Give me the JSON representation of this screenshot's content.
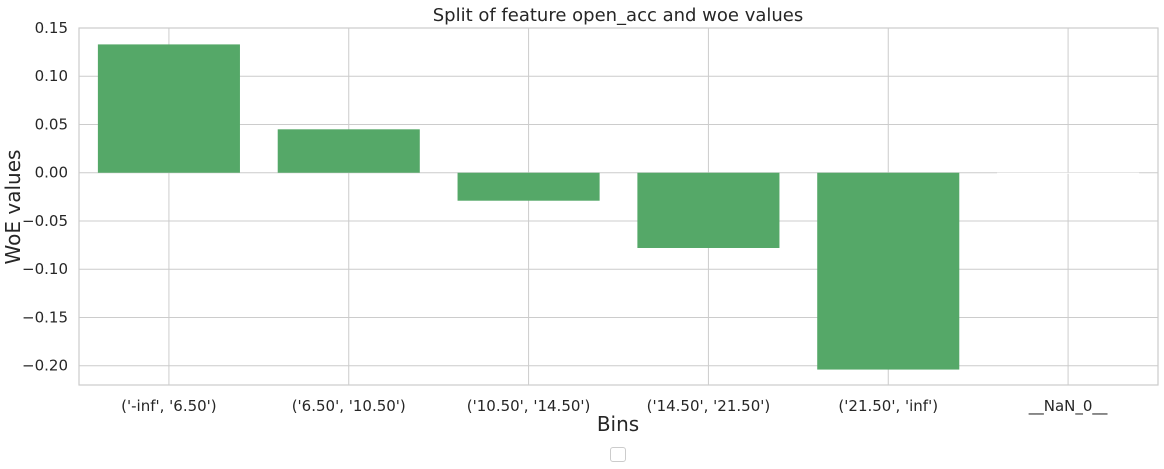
{
  "chart_data": {
    "type": "bar",
    "title": "Split of feature open_acc and woe values",
    "xlabel": "Bins",
    "ylabel": "WoE values",
    "categories": [
      "('-inf', '6.50')",
      "('6.50', '10.50')",
      "('10.50', '14.50')",
      "('14.50', '21.50')",
      "('21.50', 'inf')",
      "__NaN_0__"
    ],
    "values": [
      0.133,
      0.045,
      -0.029,
      -0.078,
      -0.204,
      0.0
    ],
    "ylim": [
      -0.22,
      0.15
    ],
    "yticks": [
      "0.15",
      "0.10",
      "0.05",
      "0.00",
      "−0.05",
      "−0.10",
      "−0.15",
      "−0.20"
    ],
    "ytick_values": [
      0.15,
      0.1,
      0.05,
      0.0,
      -0.05,
      -0.1,
      -0.15,
      -0.2
    ],
    "bar_color": "#55a868",
    "grid": true,
    "legend": "bottom-center",
    "legend_entries": []
  }
}
